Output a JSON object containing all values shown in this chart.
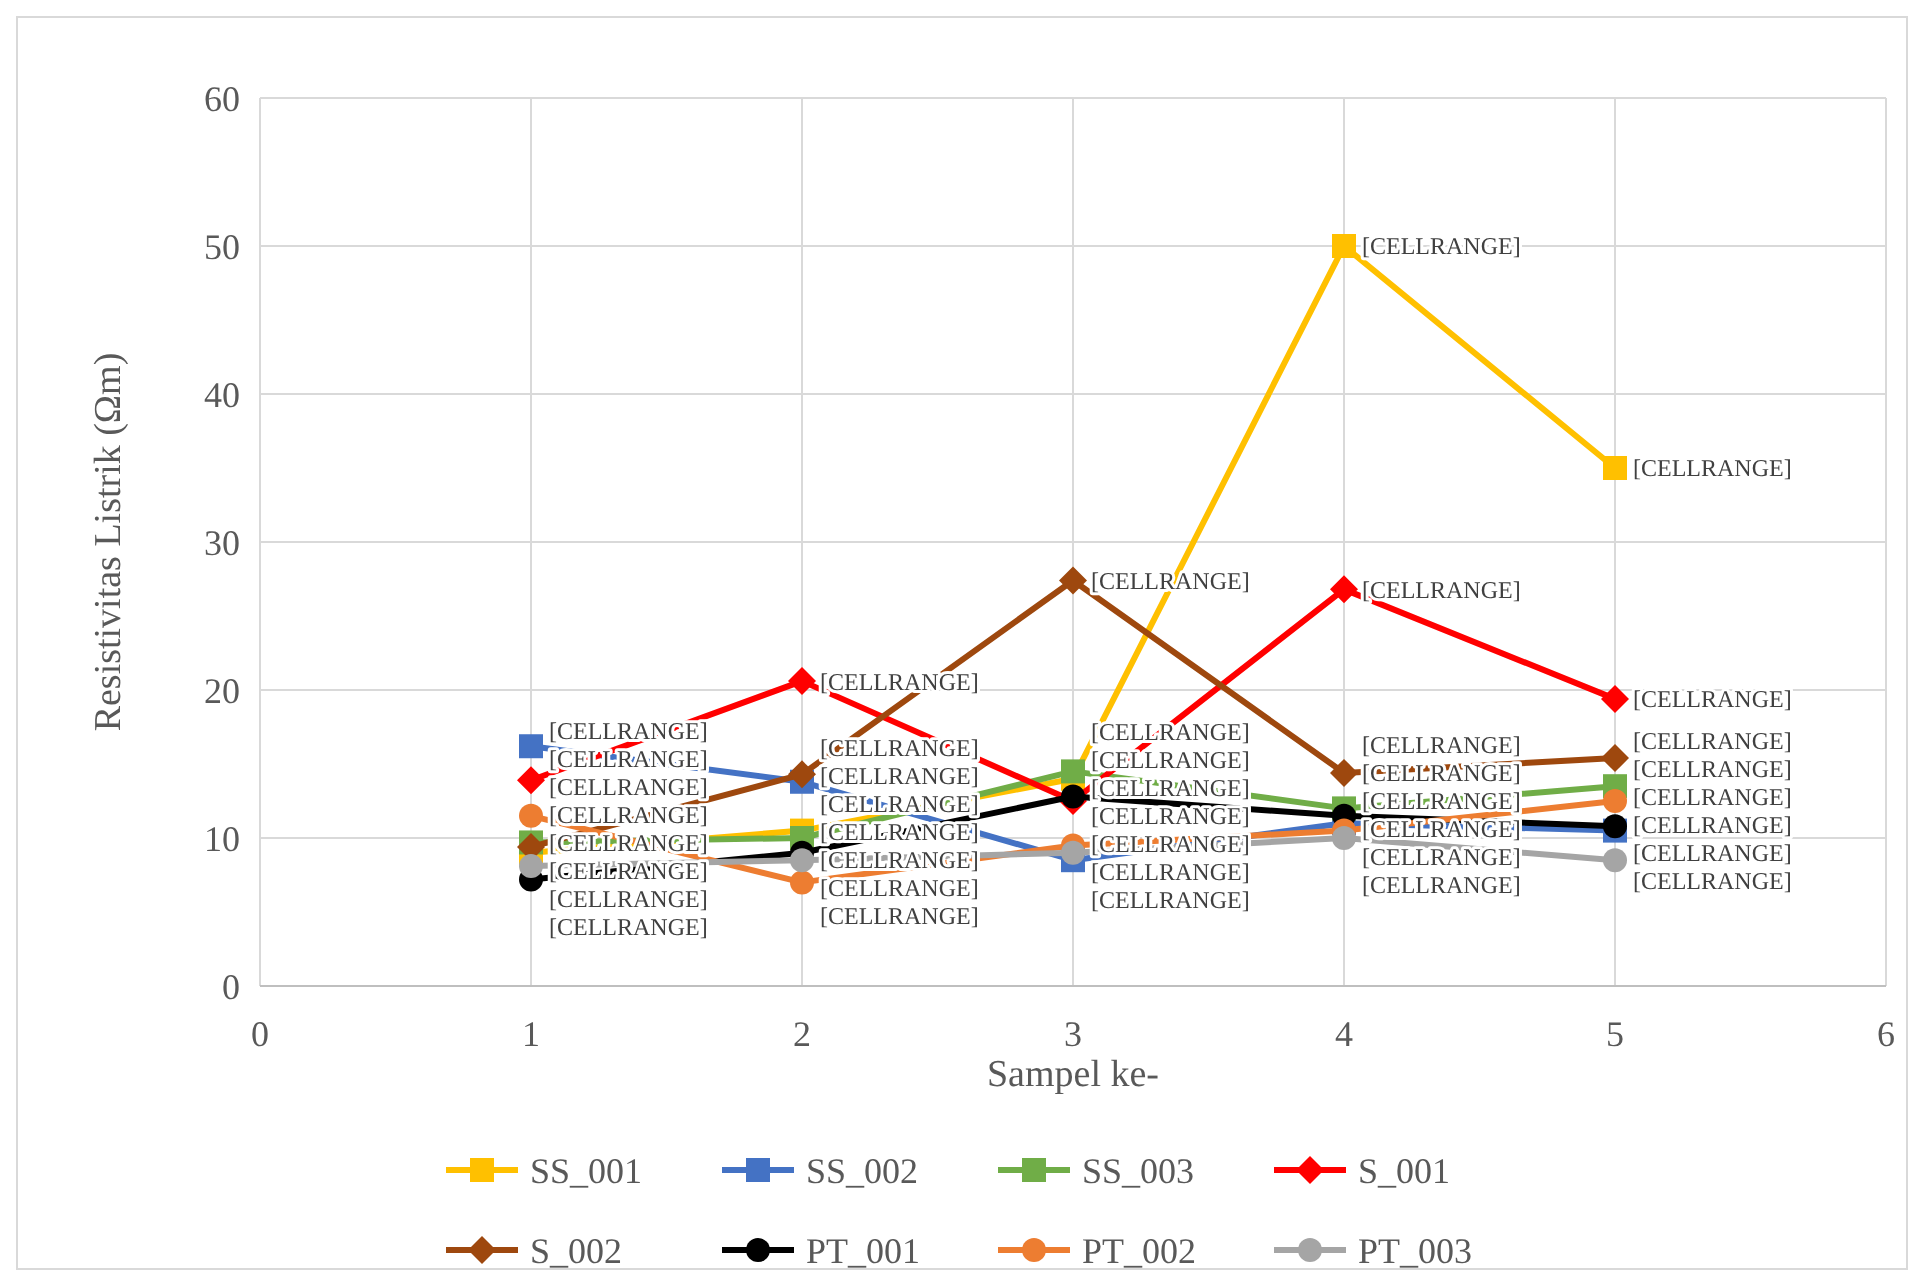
{
  "chart_data": {
    "type": "line",
    "xlabel": "Sampel ke-",
    "ylabel": "Resistivitas Listrik (Ωm)",
    "x": [
      1,
      2,
      3,
      4,
      5
    ],
    "xlim": [
      0,
      6
    ],
    "xticks": [
      0,
      1,
      2,
      3,
      4,
      5,
      6
    ],
    "ylim": [
      0,
      60
    ],
    "yticks": [
      0,
      10,
      20,
      30,
      40,
      50,
      60
    ],
    "grid": true,
    "legend": "bottom",
    "series": [
      {
        "name": "SS_001",
        "color": "#ffc000",
        "marker": "square",
        "values": [
          9,
          10.5,
          14,
          50,
          35
        ],
        "value_labels": [
          "[CELLRANGE]",
          "[CELLRANGE]",
          "[CELLRANGE]",
          "[CELLRANGE]",
          "[CELLRANGE]"
        ]
      },
      {
        "name": "SS_002",
        "color": "#4472c4",
        "marker": "square",
        "values": [
          16.2,
          13.8,
          8.5,
          11,
          10.5
        ],
        "value_labels": [
          "[CELLRANGE]",
          "[CELLRANGE]",
          "[CELLRANGE]",
          "[CELLRANGE]",
          "[CELLRANGE]"
        ]
      },
      {
        "name": "SS_003",
        "color": "#70ad47",
        "marker": "square",
        "values": [
          9.7,
          10,
          14.5,
          12,
          13.5
        ],
        "value_labels": [
          "[CELLRANGE]",
          "[CELLRANGE]",
          "[CELLRANGE]",
          "[CELLRANGE]",
          "[CELLRANGE]"
        ]
      },
      {
        "name": "S_001",
        "color": "#ff0000",
        "marker": "diamond",
        "values": [
          13.9,
          20.6,
          12.5,
          26.8,
          19.4
        ],
        "value_labels": [
          "[CELLRANGE]",
          "[CELLRANGE]",
          "[CELLRANGE]",
          "[CELLRANGE]",
          "[CELLRANGE]"
        ]
      },
      {
        "name": "S_002",
        "color": "#9e480e",
        "marker": "diamond",
        "values": [
          9.4,
          14.3,
          27.4,
          14.4,
          15.4
        ],
        "value_labels": [
          "[CELLRANGE]",
          "[CELLRANGE]",
          "[CELLRANGE]",
          "[CELLRANGE]",
          "[CELLRANGE]"
        ]
      },
      {
        "name": "PT_001",
        "color": "#000000",
        "marker": "circle",
        "values": [
          7.2,
          9,
          12.8,
          11.5,
          10.8
        ],
        "value_labels": [
          "[CELLRANGE]",
          "[CELLRANGE]",
          "[CELLRANGE]",
          "[CELLRANGE]",
          "[CELLRANGE]"
        ]
      },
      {
        "name": "PT_002",
        "color": "#ed7d31",
        "marker": "circle",
        "values": [
          11.5,
          7,
          9.5,
          10.5,
          12.5
        ],
        "value_labels": [
          "[CELLRANGE]",
          "[CELLRANGE]",
          "[CELLRANGE]",
          "[CELLRANGE]",
          "[CELLRANGE]"
        ]
      },
      {
        "name": "PT_003",
        "color": "#a5a5a5",
        "marker": "circle",
        "values": [
          8.1,
          8.5,
          9,
          10,
          8.5
        ],
        "value_labels": [
          "[CELLRANGE]",
          "[CELLRANGE]",
          "[CELLRANGE]",
          "[CELLRANGE]",
          "[CELLRANGE]"
        ]
      }
    ]
  }
}
